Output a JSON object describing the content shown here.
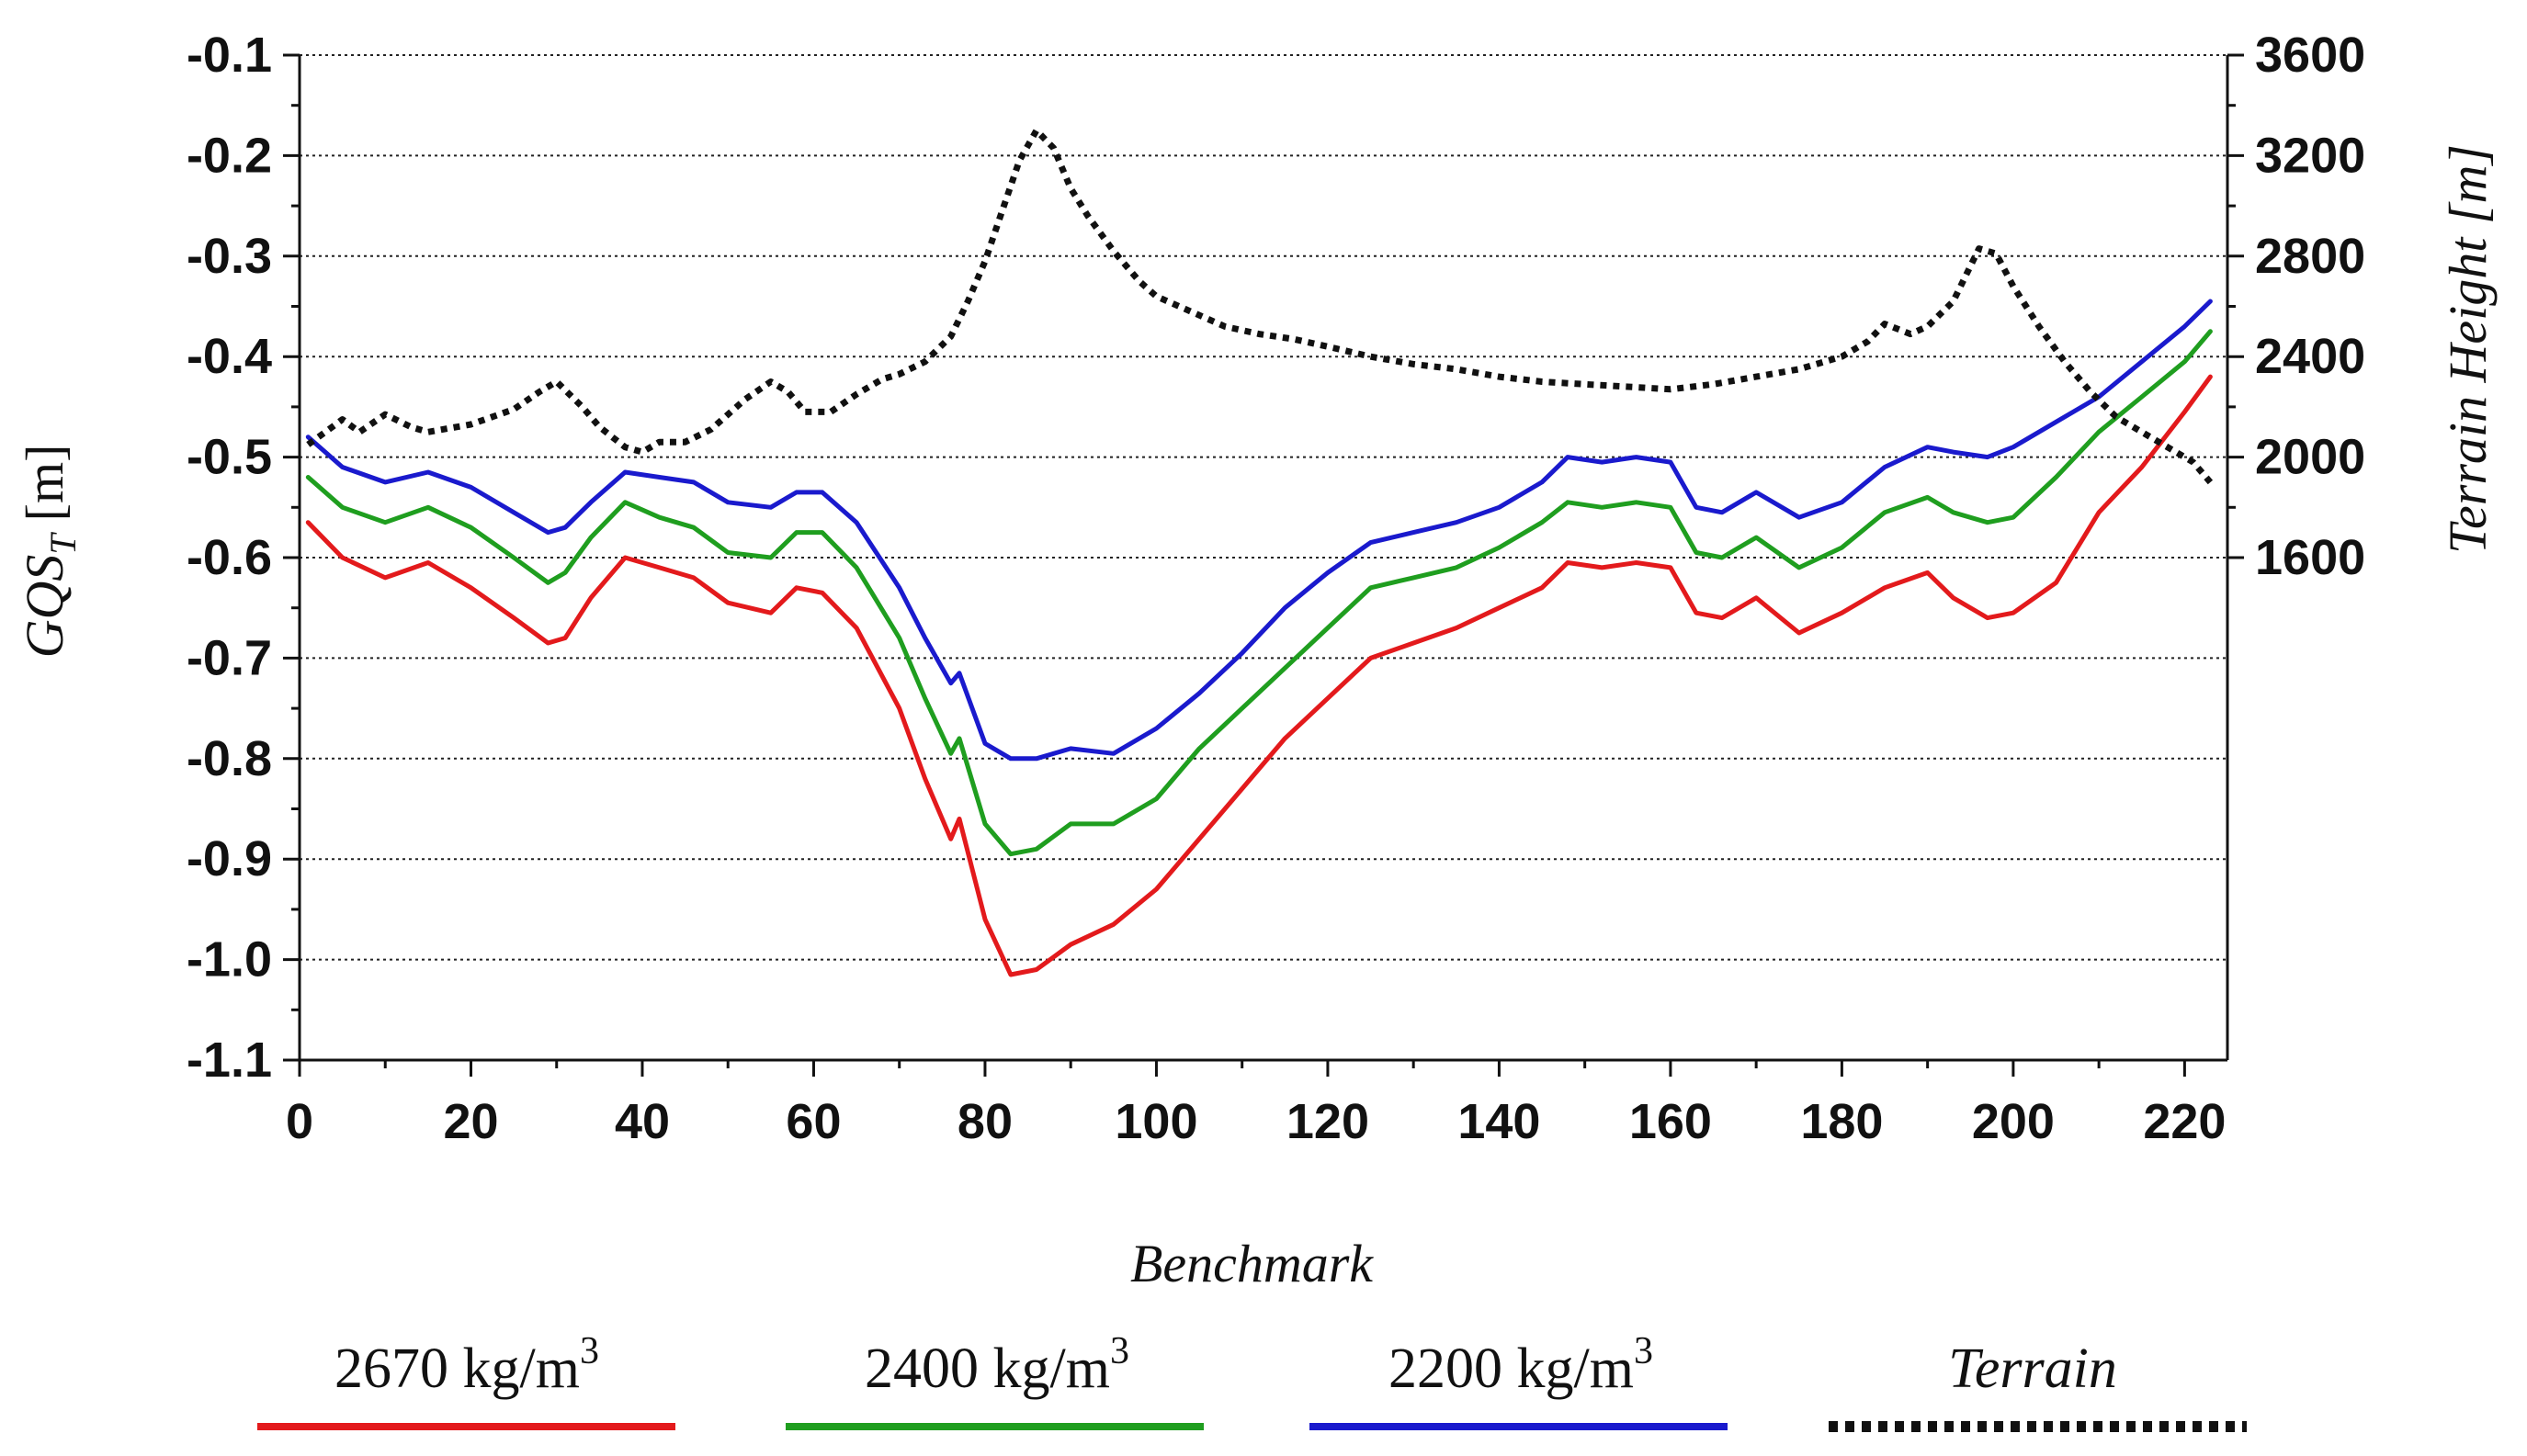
{
  "chart_data": {
    "type": "line",
    "xlabel": "Benchmark",
    "ylabel_main": "GQS",
    "ylabel_sub": "T",
    "ylabel_unit": "[m]",
    "y2label": "Terrain Height [m]",
    "xlim": [
      0,
      225
    ],
    "ylim": [
      -1.1,
      -0.1
    ],
    "y2lim": [
      -400,
      3600
    ],
    "xticks": [
      "0",
      "20",
      "40",
      "60",
      "80",
      "100",
      "120",
      "140",
      "160",
      "180",
      "200",
      "220"
    ],
    "xtick_values": [
      0,
      20,
      40,
      60,
      80,
      100,
      120,
      140,
      160,
      180,
      200,
      220
    ],
    "yticks": [
      "-0.1",
      "-0.2",
      "-0.3",
      "-0.4",
      "-0.5",
      "-0.6",
      "-0.7",
      "-0.8",
      "-0.9",
      "-1.0",
      "-1.1"
    ],
    "ytick_values": [
      -0.1,
      -0.2,
      -0.3,
      -0.4,
      -0.5,
      -0.6,
      -0.7,
      -0.8,
      -0.9,
      -1.0,
      -1.1
    ],
    "y2ticks": [
      "3600",
      "3200",
      "2800",
      "2400",
      "2000",
      "1600"
    ],
    "y2tick_values": [
      3600,
      3200,
      2800,
      2400,
      2000,
      1600
    ],
    "grid": true,
    "legend_position": "bottom",
    "series": [
      {
        "name": "2670 kg/m",
        "superscript": "3",
        "color": "#e31a1c",
        "axis": "left",
        "style": "solid",
        "x": [
          1,
          5,
          10,
          15,
          20,
          25,
          29,
          31,
          34,
          38,
          42,
          46,
          50,
          55,
          58,
          61,
          65,
          70,
          73,
          76,
          77,
          80,
          83,
          86,
          90,
          95,
          100,
          105,
          110,
          115,
          120,
          125,
          130,
          135,
          140,
          145,
          148,
          152,
          156,
          160,
          163,
          166,
          170,
          175,
          180,
          185,
          190,
          193,
          197,
          200,
          205,
          210,
          215,
          220,
          223
        ],
        "values": [
          -0.565,
          -0.6,
          -0.62,
          -0.605,
          -0.63,
          -0.66,
          -0.685,
          -0.68,
          -0.64,
          -0.6,
          -0.61,
          -0.62,
          -0.645,
          -0.655,
          -0.63,
          -0.635,
          -0.67,
          -0.75,
          -0.82,
          -0.88,
          -0.86,
          -0.96,
          -1.015,
          -1.01,
          -0.985,
          -0.965,
          -0.93,
          -0.88,
          -0.83,
          -0.78,
          -0.74,
          -0.7,
          -0.685,
          -0.67,
          -0.65,
          -0.63,
          -0.605,
          -0.61,
          -0.605,
          -0.61,
          -0.655,
          -0.66,
          -0.64,
          -0.675,
          -0.655,
          -0.63,
          -0.615,
          -0.64,
          -0.66,
          -0.655,
          -0.625,
          -0.555,
          -0.51,
          -0.455,
          -0.42
        ]
      },
      {
        "name": "2400 kg/m",
        "superscript": "3",
        "color": "#1f9e1f",
        "axis": "left",
        "style": "solid",
        "x": [
          1,
          5,
          10,
          15,
          20,
          25,
          29,
          31,
          34,
          38,
          42,
          46,
          50,
          55,
          58,
          61,
          65,
          70,
          73,
          76,
          77,
          80,
          83,
          86,
          90,
          95,
          100,
          105,
          110,
          115,
          120,
          125,
          130,
          135,
          140,
          145,
          148,
          152,
          156,
          160,
          163,
          166,
          170,
          175,
          180,
          185,
          190,
          193,
          197,
          200,
          205,
          210,
          215,
          220,
          223
        ],
        "values": [
          -0.52,
          -0.55,
          -0.565,
          -0.55,
          -0.57,
          -0.6,
          -0.625,
          -0.615,
          -0.58,
          -0.545,
          -0.56,
          -0.57,
          -0.595,
          -0.6,
          -0.575,
          -0.575,
          -0.61,
          -0.68,
          -0.74,
          -0.795,
          -0.78,
          -0.865,
          -0.895,
          -0.89,
          -0.865,
          -0.865,
          -0.84,
          -0.79,
          -0.75,
          -0.71,
          -0.67,
          -0.63,
          -0.62,
          -0.61,
          -0.59,
          -0.565,
          -0.545,
          -0.55,
          -0.545,
          -0.55,
          -0.595,
          -0.6,
          -0.58,
          -0.61,
          -0.59,
          -0.555,
          -0.54,
          -0.555,
          -0.565,
          -0.56,
          -0.52,
          -0.475,
          -0.44,
          -0.405,
          -0.375
        ]
      },
      {
        "name": "2200 kg/m",
        "superscript": "3",
        "color": "#1a1acd",
        "axis": "left",
        "style": "solid",
        "x": [
          1,
          5,
          10,
          15,
          20,
          25,
          29,
          31,
          34,
          38,
          42,
          46,
          50,
          55,
          58,
          61,
          65,
          70,
          73,
          76,
          77,
          80,
          83,
          86,
          90,
          95,
          100,
          105,
          110,
          115,
          120,
          125,
          130,
          135,
          140,
          145,
          148,
          152,
          156,
          160,
          163,
          166,
          170,
          175,
          180,
          185,
          190,
          193,
          197,
          200,
          205,
          210,
          215,
          220,
          223
        ],
        "values": [
          -0.48,
          -0.51,
          -0.525,
          -0.515,
          -0.53,
          -0.555,
          -0.575,
          -0.57,
          -0.545,
          -0.515,
          -0.52,
          -0.525,
          -0.545,
          -0.55,
          -0.535,
          -0.535,
          -0.565,
          -0.63,
          -0.68,
          -0.725,
          -0.715,
          -0.785,
          -0.8,
          -0.8,
          -0.79,
          -0.795,
          -0.77,
          -0.735,
          -0.695,
          -0.65,
          -0.615,
          -0.585,
          -0.575,
          -0.565,
          -0.55,
          -0.525,
          -0.5,
          -0.505,
          -0.5,
          -0.505,
          -0.55,
          -0.555,
          -0.535,
          -0.56,
          -0.545,
          -0.51,
          -0.49,
          -0.495,
          -0.5,
          -0.49,
          -0.465,
          -0.44,
          -0.405,
          -0.37,
          -0.345
        ]
      },
      {
        "name": "Terrain",
        "superscript": "",
        "color": "#111111",
        "axis": "right",
        "style": "dotted",
        "x": [
          1,
          3,
          5,
          7,
          10,
          13,
          15,
          20,
          25,
          28,
          30,
          33,
          35,
          38,
          40,
          42,
          45,
          48,
          52,
          55,
          57,
          59,
          62,
          65,
          68,
          70,
          73,
          76,
          78,
          80,
          82,
          84,
          86,
          88,
          90,
          92,
          95,
          98,
          100,
          104,
          108,
          112,
          116,
          120,
          125,
          130,
          135,
          140,
          145,
          150,
          155,
          160,
          165,
          170,
          175,
          180,
          183,
          185,
          188,
          190,
          193,
          196,
          198,
          200,
          203,
          206,
          209,
          212,
          215,
          218,
          221,
          223
        ],
        "values": [
          2050,
          2100,
          2150,
          2100,
          2170,
          2120,
          2100,
          2130,
          2190,
          2260,
          2300,
          2200,
          2120,
          2040,
          2020,
          2060,
          2060,
          2110,
          2230,
          2300,
          2260,
          2180,
          2180,
          2250,
          2310,
          2330,
          2380,
          2480,
          2620,
          2780,
          2980,
          3180,
          3300,
          3230,
          3070,
          2960,
          2820,
          2700,
          2640,
          2580,
          2520,
          2490,
          2470,
          2440,
          2400,
          2370,
          2350,
          2320,
          2300,
          2290,
          2280,
          2270,
          2290,
          2320,
          2350,
          2400,
          2460,
          2530,
          2490,
          2520,
          2620,
          2830,
          2810,
          2680,
          2520,
          2380,
          2260,
          2160,
          2100,
          2040,
          1980,
          1900
        ]
      }
    ]
  }
}
